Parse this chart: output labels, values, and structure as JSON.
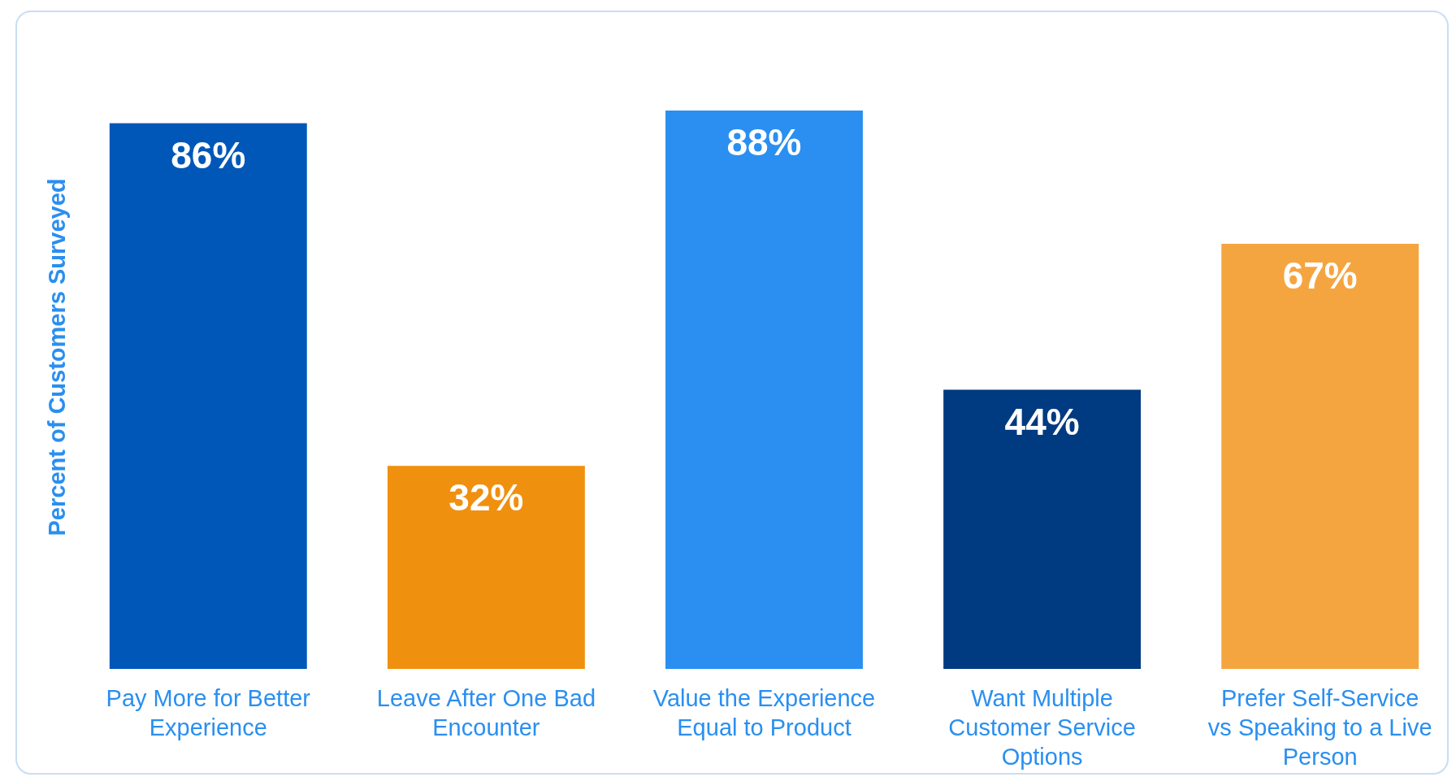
{
  "chart_data": {
    "type": "bar",
    "ylabel": "Percent of Customers Surveyed",
    "categories": [
      "Pay More for Better Experience",
      "Leave After One Bad Encounter",
      "Value the Experience Equal to Product",
      "Want Multiple Customer Service Options",
      "Prefer Self-Service vs Speaking to a Live Person"
    ],
    "values": [
      86,
      32,
      88,
      44,
      67
    ],
    "colors": [
      "#0057b8",
      "#f0900f",
      "#2a8ff0",
      "#003a80",
      "#f5a540"
    ],
    "value_labels": [
      "86%",
      "32%",
      "88%",
      "44%",
      "67%"
    ]
  }
}
